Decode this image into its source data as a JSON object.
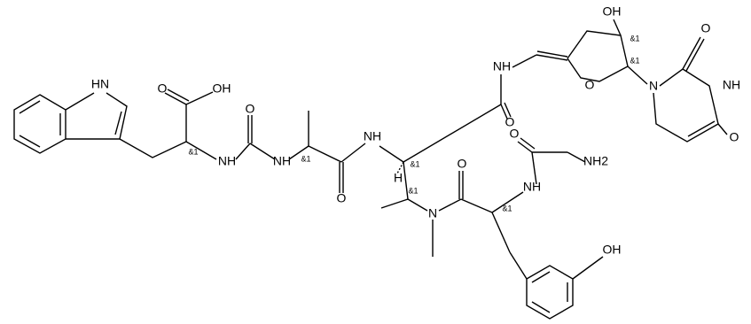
{
  "atom_labels": [
    "HN",
    "O",
    "OH",
    "&1",
    "O",
    "NH",
    "NH",
    "&1",
    "O",
    "NH",
    "H",
    "&1",
    "&1",
    "N",
    "O",
    "&1",
    "NH",
    "O",
    "NH2",
    "O",
    "NH",
    "O",
    "OH",
    "&1",
    "&1",
    "N",
    "O",
    "NH",
    "O",
    "OH"
  ]
}
